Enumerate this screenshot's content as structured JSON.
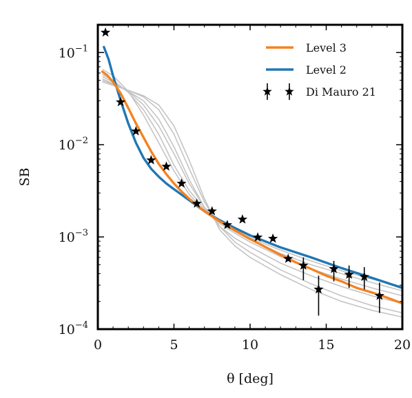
{
  "chart_data": {
    "type": "line",
    "xlabel": "θ [deg]",
    "ylabel": "SB",
    "xlim": [
      0,
      20
    ],
    "ylim": [
      0.0001,
      0.2
    ],
    "yscale": "log",
    "x_ticks": [
      0,
      5,
      10,
      15,
      20
    ],
    "x_tick_labels": [
      "0",
      "5",
      "10",
      "15",
      "20"
    ],
    "y_ticks": [
      0.1,
      0.01,
      0.001,
      0.0001
    ],
    "y_tick_labels": [
      {
        "base": "10",
        "exp": "−1"
      },
      {
        "base": "10",
        "exp": "−2"
      },
      {
        "base": "10",
        "exp": "−3"
      },
      {
        "base": "10",
        "exp": "−4"
      }
    ],
    "legend_position": "top-right",
    "grey_curves": [
      {
        "x": [
          0.3,
          1,
          2,
          3,
          4,
          5,
          6,
          7,
          8,
          9,
          10,
          12,
          14,
          16,
          18,
          20
        ],
        "values": [
          0.066,
          0.056,
          0.038,
          0.021,
          0.0105,
          0.0052,
          0.0029,
          0.0019,
          0.00145,
          0.00118,
          0.00098,
          0.00072,
          0.00055,
          0.00043,
          0.00035,
          0.00029
        ]
      },
      {
        "x": [
          0.3,
          1,
          2,
          3,
          4,
          5,
          6,
          7,
          8,
          9,
          10,
          12,
          14,
          16,
          18,
          20
        ],
        "values": [
          0.058,
          0.05,
          0.037,
          0.024,
          0.013,
          0.006,
          0.0032,
          0.002,
          0.00145,
          0.00115,
          0.00093,
          0.00066,
          0.0005,
          0.0004,
          0.00032,
          0.00026
        ]
      },
      {
        "x": [
          0.3,
          1,
          2,
          3,
          4,
          5,
          6,
          7,
          8,
          9,
          10,
          12,
          14,
          16,
          18,
          20
        ],
        "values": [
          0.055,
          0.048,
          0.038,
          0.027,
          0.016,
          0.008,
          0.0038,
          0.0021,
          0.0014,
          0.0011,
          0.00088,
          0.00061,
          0.00045,
          0.00035,
          0.00028,
          0.00023
        ]
      },
      {
        "x": [
          0.3,
          1,
          2,
          3,
          4,
          5,
          6,
          7,
          8,
          9,
          10,
          12,
          14,
          16,
          18,
          20
        ],
        "values": [
          0.052,
          0.046,
          0.038,
          0.03,
          0.019,
          0.0095,
          0.0042,
          0.0021,
          0.0013,
          0.00097,
          0.00078,
          0.00052,
          0.00038,
          0.00029,
          0.00023,
          0.00019
        ]
      },
      {
        "x": [
          0.3,
          1,
          2,
          3,
          4,
          5,
          6,
          7,
          8,
          9,
          10,
          12,
          14,
          16,
          18,
          20
        ],
        "values": [
          0.05,
          0.045,
          0.039,
          0.033,
          0.024,
          0.013,
          0.0055,
          0.0024,
          0.0013,
          0.00088,
          0.00068,
          0.00044,
          0.00031,
          0.00023,
          0.00018,
          0.00015
        ]
      },
      {
        "x": [
          0.3,
          1,
          2,
          3,
          4,
          5,
          6,
          7,
          8,
          9,
          10,
          12,
          14,
          16,
          18,
          20
        ],
        "values": [
          0.048,
          0.044,
          0.039,
          0.034,
          0.027,
          0.016,
          0.0068,
          0.0026,
          0.0012,
          0.0008,
          0.0006,
          0.00039,
          0.00027,
          0.0002,
          0.00016,
          0.000135
        ]
      }
    ],
    "series": [
      {
        "name": "Level 3",
        "color": "#f5821f",
        "x": [
          0.3,
          0.6,
          1,
          1.5,
          2,
          2.5,
          3,
          3.5,
          4,
          4.5,
          5,
          5.5,
          6,
          7,
          8,
          9,
          10,
          11,
          12,
          13,
          14,
          15,
          16,
          17,
          18,
          19,
          20
        ],
        "values": [
          0.062,
          0.057,
          0.048,
          0.036,
          0.025,
          0.017,
          0.012,
          0.0085,
          0.0062,
          0.0048,
          0.0038,
          0.0031,
          0.0026,
          0.0019,
          0.00148,
          0.00118,
          0.00095,
          0.00078,
          0.00064,
          0.00053,
          0.00045,
          0.00038,
          0.00033,
          0.00028,
          0.00025,
          0.00022,
          0.00019
        ]
      },
      {
        "name": "Level 2",
        "color": "#1f77b4",
        "x": [
          0.4,
          0.7,
          1,
          1.5,
          2,
          2.5,
          3,
          3.5,
          4,
          4.5,
          5,
          6,
          7,
          8,
          9,
          10,
          12,
          14,
          16,
          18,
          20
        ],
        "values": [
          0.115,
          0.085,
          0.056,
          0.03,
          0.017,
          0.0105,
          0.0072,
          0.0055,
          0.0045,
          0.0038,
          0.0033,
          0.0025,
          0.0019,
          0.00152,
          0.00125,
          0.00104,
          0.00077,
          0.0006,
          0.00046,
          0.00036,
          0.00028
        ]
      }
    ],
    "points": {
      "name": "Di Mauro 21",
      "x": [
        0.5,
        1.5,
        2.5,
        3.5,
        4.5,
        5.5,
        6.5,
        7.5,
        8.5,
        9.5,
        10.5,
        11.5,
        12.5,
        13.5,
        14.5,
        15.5,
        16.5,
        17.5,
        18.5
      ],
      "values": [
        0.165,
        0.029,
        0.014,
        0.0068,
        0.0058,
        0.0038,
        0.0023,
        0.0019,
        0.00135,
        0.00155,
        0.00099,
        0.00096,
        0.00058,
        0.00049,
        0.00027,
        0.00045,
        0.00039,
        0.00037,
        0.00023
      ],
      "err_low": [
        0,
        0,
        0,
        0,
        0,
        0,
        0,
        0,
        0,
        0,
        0,
        0,
        0,
        0.00015,
        0.00013,
        0.00012,
        0.00011,
        0.0001,
        8e-05
      ],
      "err_high": [
        0,
        0,
        0,
        0,
        0,
        0,
        0,
        0,
        0,
        0,
        0,
        0,
        0,
        0.00011,
        0.00011,
        0.0001,
        0.0001,
        0.0001,
        9e-05
      ]
    }
  }
}
